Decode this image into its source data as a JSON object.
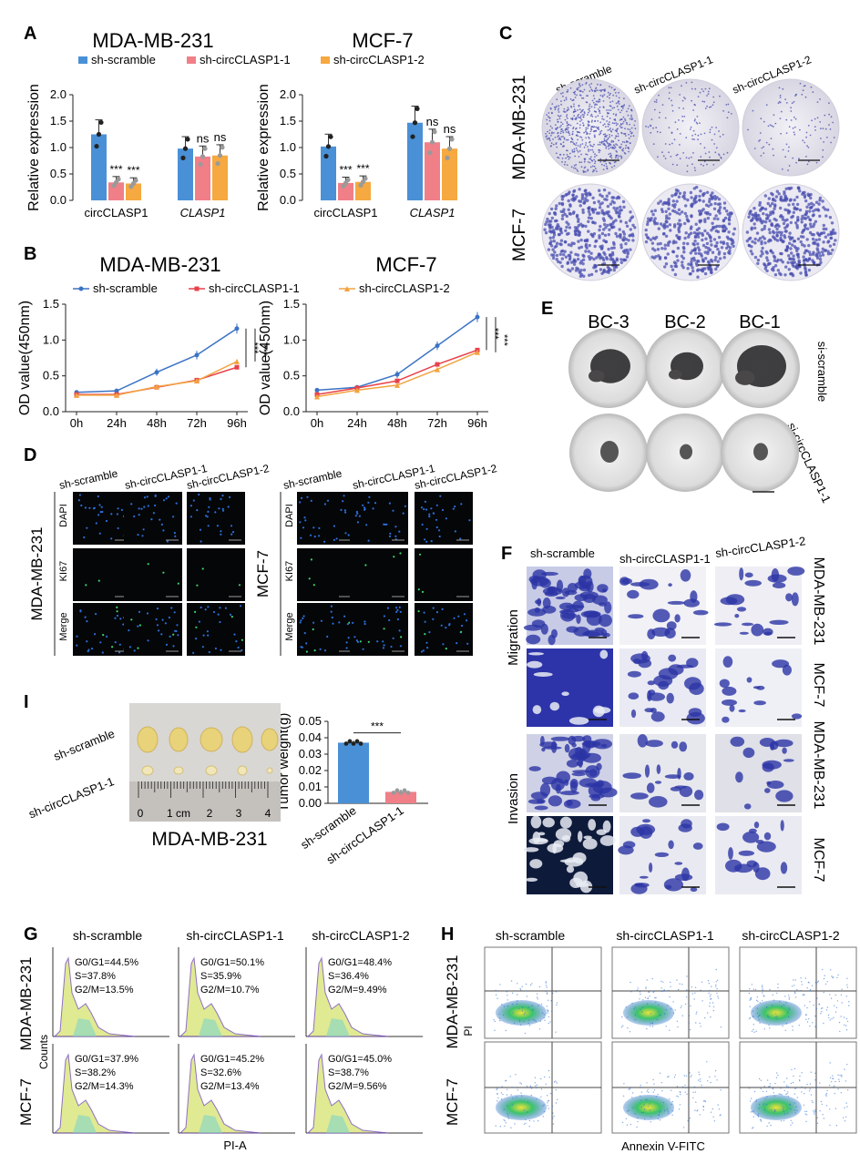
{
  "colors": {
    "blue": "#4a90d6",
    "red": "#f07f88",
    "orange": "#f5a940",
    "line_blue": "#3b73c4",
    "line_red": "#e8414a",
    "line_orange": "#f2a33f",
    "stain": "#4a4fb0",
    "dapi": "#2a6fd9",
    "ki67": "#3bd46a"
  },
  "panel_letters": {
    "A": "A",
    "B": "B",
    "C": "C",
    "D": "D",
    "E": "E",
    "F": "F",
    "G": "G",
    "H": "H",
    "I": "I"
  },
  "legend": {
    "s0": "sh-scramble",
    "s1": "sh-circCLASP1-1",
    "s2": "sh-circCLASP1-2"
  },
  "cells": {
    "mda": "MDA-MB-231",
    "mcf": "MCF-7"
  },
  "markers": {
    "dapi": "DAPI",
    "ki67": "KI67",
    "merge": "Merge"
  },
  "labels": {
    "ns": "ns",
    "stars": "***",
    "migration": "Migration",
    "invasion": "Invasion",
    "counts": "Counts",
    "pia": "PI-A",
    "pi": "PI",
    "annexin": "Annexin V-FITC",
    "si_scramble": "si-scramble",
    "si_circ": "si-circCLASP1-1",
    "bc3": "BC-3",
    "bc2": "BC-2",
    "bc1": "BC-1",
    "ruler_0": "0",
    "ruler_1": "1 cm",
    "ruler_2": "2",
    "ruler_3": "3",
    "ruler_4": "4"
  },
  "chart_data": [
    {
      "type": "bar",
      "panel": "A",
      "title": "MDA-MB-231",
      "ylabel": "Relative expression",
      "ylim": [
        0,
        2.0
      ],
      "yticks": [
        "0.0",
        "0.5",
        "1.0",
        "1.5",
        "2.0"
      ],
      "categories": [
        "circCLASP1",
        "CLASP1"
      ],
      "series": [
        {
          "name": "sh-scramble",
          "values": [
            1.25,
            0.98
          ]
        },
        {
          "name": "sh-circCLASP1-1",
          "values": [
            0.34,
            0.83
          ]
        },
        {
          "name": "sh-circCLASP1-2",
          "values": [
            0.32,
            0.85
          ]
        }
      ],
      "significance": [
        [
          "",
          "***",
          "***"
        ],
        [
          "",
          "ns",
          "ns"
        ]
      ]
    },
    {
      "type": "bar",
      "panel": "A",
      "title": "MCF-7",
      "ylabel": "Relative expression",
      "ylim": [
        0,
        2.0
      ],
      "yticks": [
        "0.0",
        "0.5",
        "1.0",
        "1.5",
        "2.0"
      ],
      "categories": [
        "circCLASP1",
        "CLASP1"
      ],
      "series": [
        {
          "name": "sh-scramble",
          "values": [
            1.02,
            1.47
          ]
        },
        {
          "name": "sh-circCLASP1-1",
          "values": [
            0.33,
            1.1
          ]
        },
        {
          "name": "sh-circCLASP1-2",
          "values": [
            0.35,
            0.98
          ]
        }
      ],
      "significance": [
        [
          "",
          "***",
          "***"
        ],
        [
          "",
          "ns",
          "ns"
        ]
      ]
    },
    {
      "type": "line",
      "panel": "B",
      "title": "MDA-MB-231",
      "ylabel": "OD value(450nm)",
      "ylim": [
        0,
        1.5
      ],
      "yticks": [
        "0.0",
        "0.5",
        "1.0",
        "1.5"
      ],
      "x": [
        "0h",
        "24h",
        "48h",
        "72h",
        "96h"
      ],
      "series": [
        {
          "name": "sh-scramble",
          "values": [
            0.27,
            0.29,
            0.55,
            0.79,
            1.16
          ]
        },
        {
          "name": "sh-circCLASP1-1",
          "values": [
            0.24,
            0.24,
            0.34,
            0.44,
            0.62
          ]
        },
        {
          "name": "sh-circCLASP1-2",
          "values": [
            0.23,
            0.23,
            0.35,
            0.43,
            0.7
          ]
        }
      ],
      "significance": [
        "***",
        "***"
      ]
    },
    {
      "type": "line",
      "panel": "B",
      "title": "MCF-7",
      "ylabel": "OD value(450nm)",
      "ylim": [
        0,
        1.5
      ],
      "yticks": [
        "0.0",
        "0.5",
        "1.0",
        "1.5"
      ],
      "x": [
        "0h",
        "24h",
        "48h",
        "72h",
        "96h"
      ],
      "series": [
        {
          "name": "sh-scramble",
          "values": [
            0.3,
            0.34,
            0.52,
            0.92,
            1.32
          ]
        },
        {
          "name": "sh-circCLASP1-1",
          "values": [
            0.24,
            0.33,
            0.43,
            0.66,
            0.86
          ]
        },
        {
          "name": "sh-circCLASP1-2",
          "values": [
            0.21,
            0.3,
            0.37,
            0.59,
            0.83
          ]
        }
      ],
      "significance": [
        "***",
        "***"
      ]
    },
    {
      "type": "bar",
      "panel": "I",
      "title": "MDA-MB-231",
      "ylabel": "Tumor weight(g)",
      "ylim": [
        0,
        0.05
      ],
      "yticks": [
        "0.00",
        "0.01",
        "0.02",
        "0.03",
        "0.04",
        "0.05"
      ],
      "categories": [
        "sh-scramble",
        "sh-circCLASP1-1"
      ],
      "series": [
        {
          "name": "Tumor weight",
          "values": [
            0.037,
            0.007
          ]
        }
      ],
      "significance": [
        "***"
      ]
    }
  ],
  "cell_cycle": {
    "mda": [
      [
        "G0/G1=44.5%",
        "S=37.8%",
        "G2/M=13.5%"
      ],
      [
        "G0/G1=50.1%",
        "S=35.9%",
        "G2/M=10.7%"
      ],
      [
        "G0/G1=48.4%",
        "S=36.4%",
        "G2/M=9.49%"
      ]
    ],
    "mcf": [
      [
        "G0/G1=37.9%",
        "S=38.2%",
        "G2/M=14.3%"
      ],
      [
        "G0/G1=45.2%",
        "S=32.6%",
        "G2/M=13.4%"
      ],
      [
        "G0/G1=45.0%",
        "S=38.7%",
        "G2/M=9.56%"
      ]
    ]
  }
}
